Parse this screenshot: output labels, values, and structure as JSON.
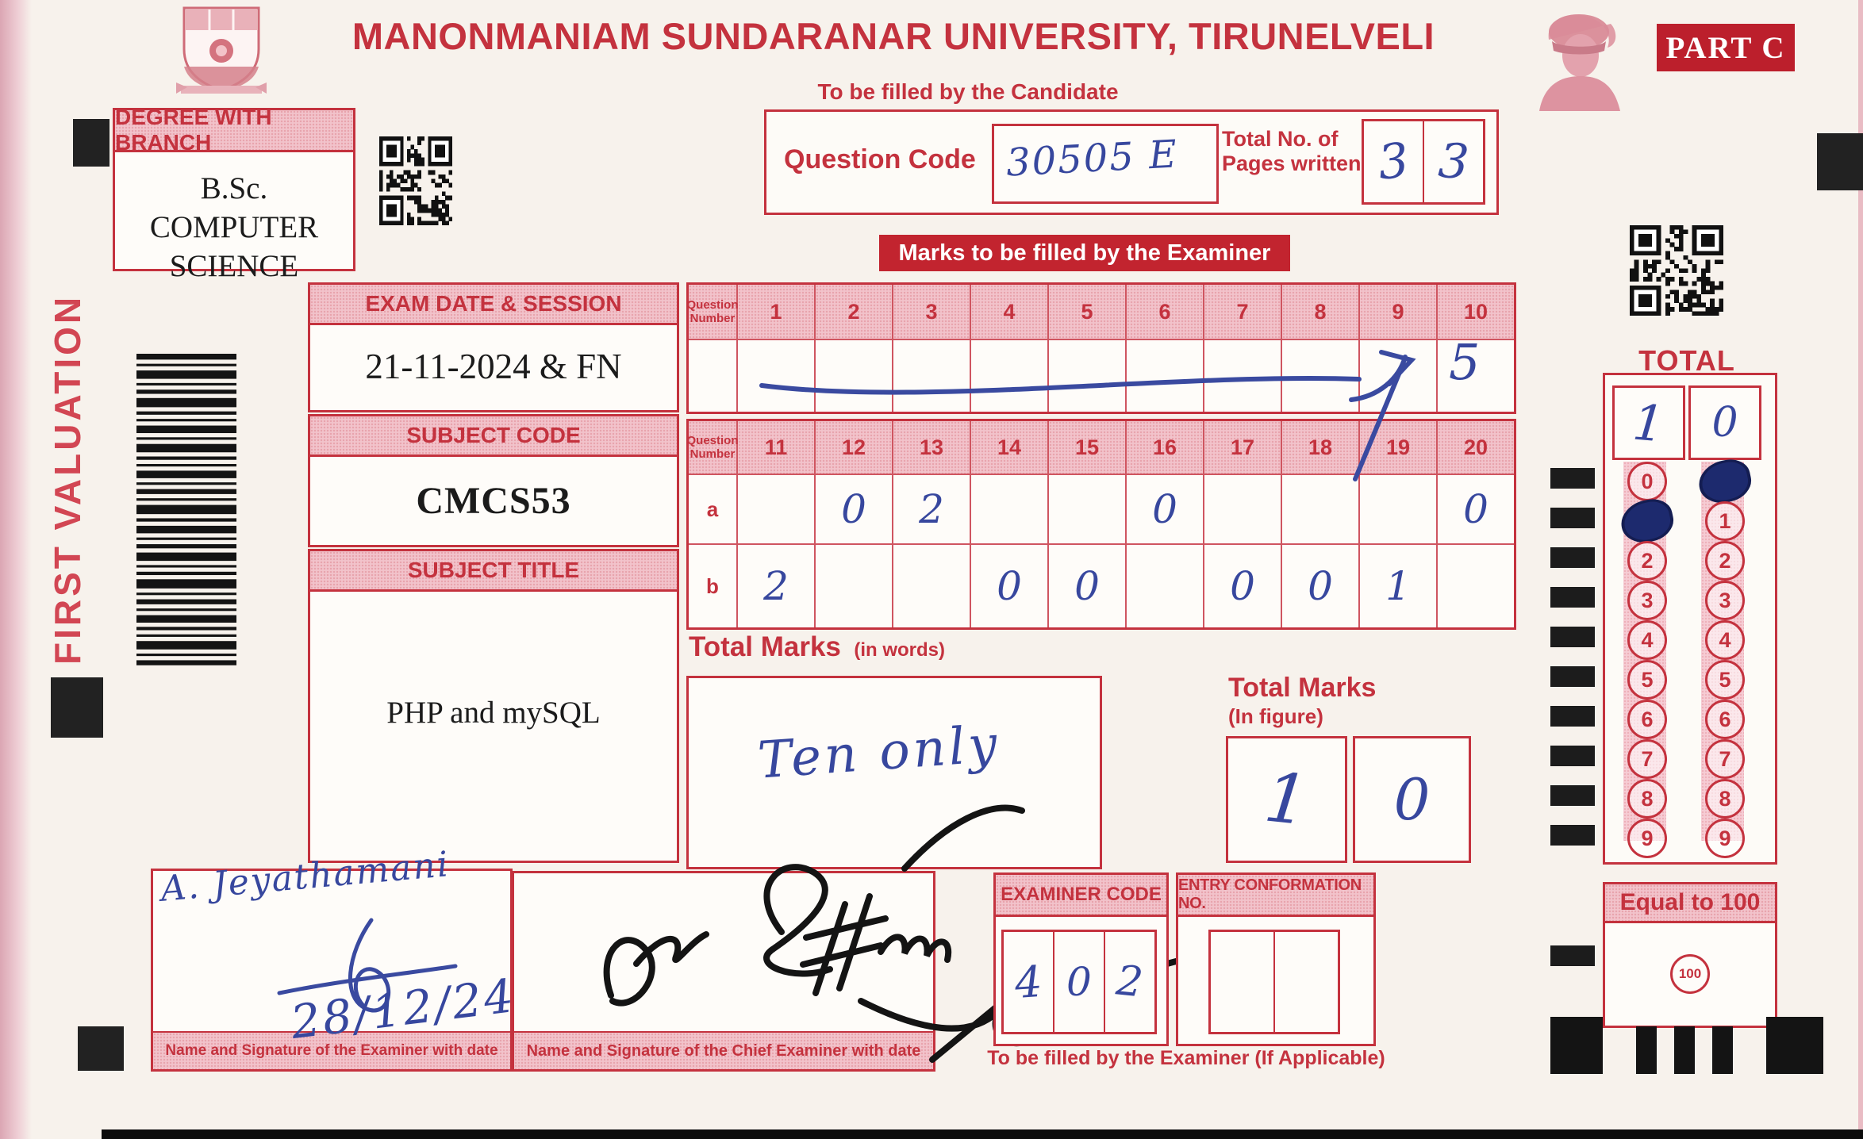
{
  "header": {
    "university": "MANONMANIAM SUNDARANAR UNIVERSITY, TIRUNELVELI",
    "part_label": "PART C",
    "candidate_note": "To be filled by the Candidate",
    "examiner_banner": "Marks to be filled by the Examiner"
  },
  "side": {
    "valuation": "FIRST VALUATION"
  },
  "degree": {
    "label": "DEGREE WITH BRANCH",
    "value": "B.Sc. COMPUTER SCIENCE"
  },
  "candidate": {
    "question_code_label": "Question Code",
    "question_code_value": "30505 E",
    "pages_label": "Total No. of Pages written",
    "pages_digits": [
      "3",
      "3"
    ]
  },
  "exam": {
    "date_label": "EXAM DATE & SESSION",
    "date_value": "21-11-2024 & FN",
    "subject_code_label": "SUBJECT CODE",
    "subject_code_value": "CMCS53",
    "subject_title_label": "SUBJECT TITLE",
    "subject_title_value": "PHP and mySQL"
  },
  "marks": {
    "row_header": "Question Number",
    "table1": {
      "columns": [
        "1",
        "2",
        "3",
        "4",
        "5",
        "6",
        "7",
        "8",
        "9",
        "10"
      ],
      "values": [
        "",
        "",
        "",
        "",
        "",
        "",
        "",
        "",
        "",
        "5"
      ]
    },
    "table2": {
      "columns": [
        "11",
        "12",
        "13",
        "14",
        "15",
        "16",
        "17",
        "18",
        "19",
        "20"
      ],
      "row_a_label": "a",
      "row_a": [
        "",
        "0",
        "2",
        "",
        "",
        "0",
        "",
        "",
        "",
        "0"
      ],
      "row_b_label": "b",
      "row_b": [
        "2",
        "",
        "",
        "0",
        "0",
        "",
        "0",
        "0",
        "1",
        ""
      ]
    }
  },
  "totals": {
    "words_label": "Total Marks",
    "words_hint": "(in words)",
    "words_value": "Ten only",
    "figure_label": "Total Marks",
    "figure_hint": "(In figure)",
    "figure_digits": [
      "1",
      "0"
    ]
  },
  "examiner": {
    "code_label": "EXAMINER CODE",
    "code_digits": [
      "4",
      "0",
      "2"
    ],
    "entry_label": "ENTRY CONFORMATION NO.",
    "examiner_sign_label": "Name and Signature of the Examiner with date",
    "chief_sign_label": "Name and Signature of the Chief Examiner with date",
    "examiner_signature": "A. Jeyathamani",
    "examiner_sign_date": "28/12/24",
    "footer_note": "To be filled by the Examiner (If Applicable)"
  },
  "total_marks_panel": {
    "title": "TOTAL MARKS",
    "digit_boxes": [
      "1",
      "0"
    ],
    "bubble_digits": [
      "0",
      "1",
      "2",
      "3",
      "4",
      "5",
      "6",
      "7",
      "8",
      "9"
    ],
    "tens_filled_index": 1,
    "units_filled_index": 0,
    "equal_label": "Equal to 100",
    "equal_value": "100"
  },
  "colors": {
    "accent_red": "#c4323e",
    "banner_red": "#c2242f",
    "band_pink": "#f2c3cb",
    "ink_blue": "#37479e",
    "ink_black": "#151515"
  }
}
